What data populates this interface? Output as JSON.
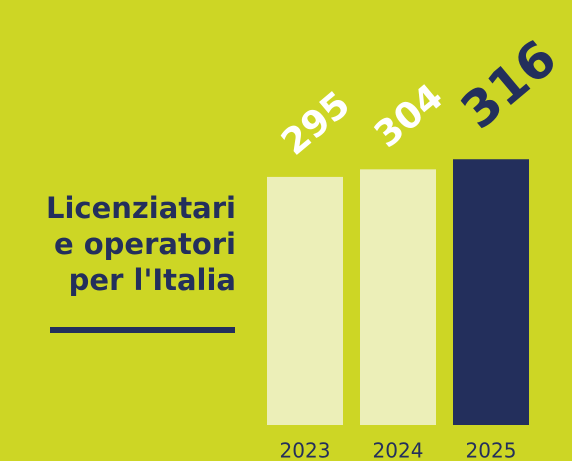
{
  "chart_data": {
    "type": "bar",
    "title": [
      "Licenziatari",
      "e operatori",
      "per l'Italia"
    ],
    "categories": [
      "2023",
      "2024",
      "2025"
    ],
    "values": [
      295,
      304,
      316
    ],
    "colors": [
      "#ecefb8",
      "#ecefb8",
      "#232f5c"
    ],
    "value_label_colors": [
      "#ffffff",
      "#ffffff",
      "#232f5c"
    ],
    "background": "#cdd625"
  }
}
